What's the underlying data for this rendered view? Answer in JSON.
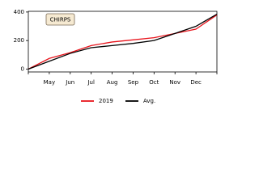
{
  "chart_data": {
    "type": "line",
    "annotation": "CHIRPS",
    "categories": [
      null,
      "May",
      "Jun",
      "Jul",
      "Aug",
      "Sep",
      "Oct",
      "Nov",
      "Dec",
      null
    ],
    "series": [
      {
        "name": "2019",
        "color": "#e8141c",
        "values": [
          0,
          75,
          115,
          165,
          190,
          205,
          220,
          250,
          280,
          380
        ]
      },
      {
        "name": "Avg.",
        "color": "#000000",
        "values": [
          0,
          55,
          110,
          150,
          165,
          180,
          200,
          250,
          300,
          385
        ]
      }
    ],
    "ylim": [
      -20,
      405
    ],
    "yticks": [
      0,
      200,
      400
    ],
    "legend": "lower center"
  }
}
